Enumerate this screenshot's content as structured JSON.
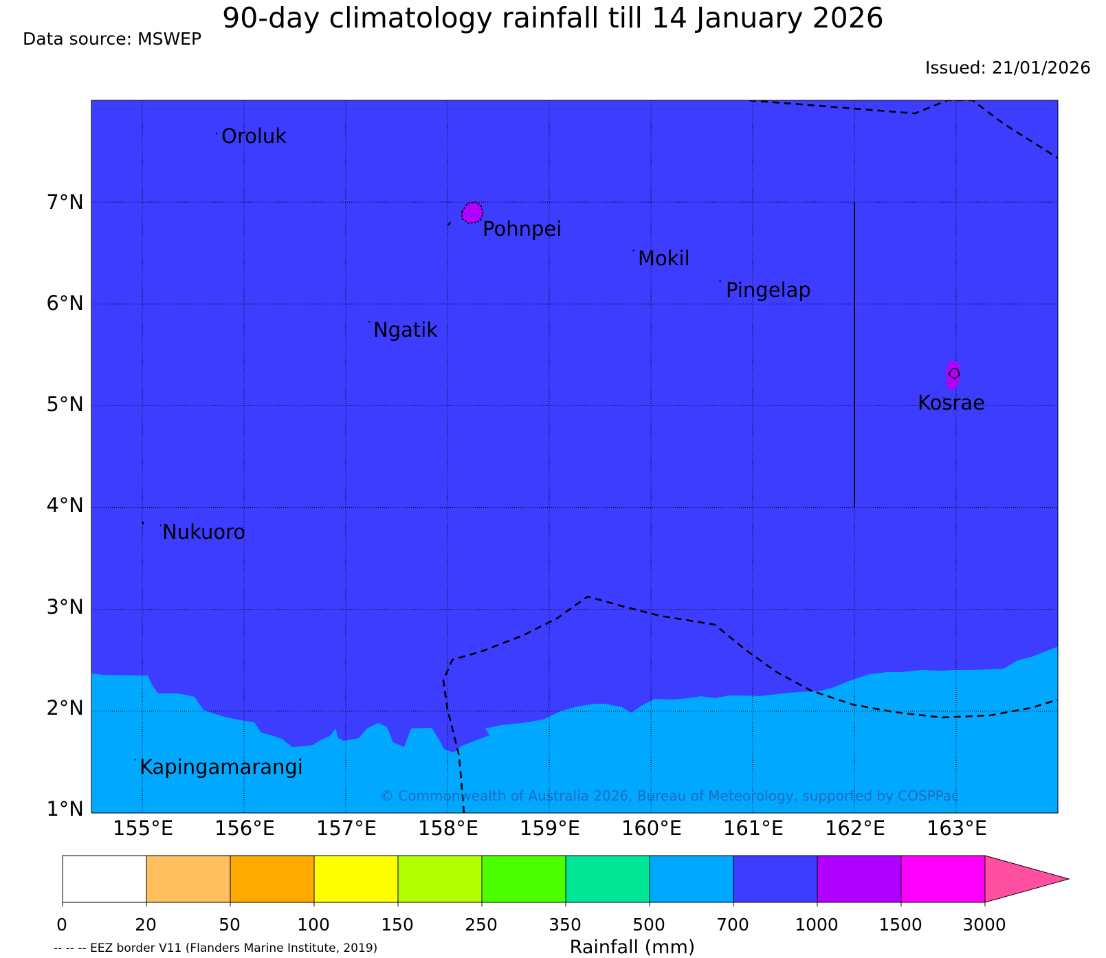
{
  "header": {
    "title": "90-day climatology rainfall till 14 January 2026",
    "source": "Data source: MSWEP",
    "issued": "Issued: 21/01/2026"
  },
  "map": {
    "extent": {
      "lon_min": 154.5,
      "lon_max": 164.0,
      "lat_min": 1.0,
      "lat_max": 8.0
    },
    "lat_labels": [
      "7°N",
      "6°N",
      "5°N",
      "4°N",
      "3°N",
      "2°N",
      "1°N"
    ],
    "lat_values": [
      7,
      6,
      5,
      4,
      3,
      2,
      1
    ],
    "lon_labels": [
      "155°E",
      "156°E",
      "157°E",
      "158°E",
      "159°E",
      "160°E",
      "161°E",
      "162°E",
      "163°E"
    ],
    "lon_values": [
      155,
      156,
      157,
      158,
      159,
      160,
      161,
      162,
      163
    ],
    "background_color": "#3d3dff",
    "south_band_color": "#00a8ff",
    "places": [
      {
        "name": "Oroluk",
        "lon": 155.75,
        "lat": 7.6
      },
      {
        "name": "Pohnpei",
        "lon": 158.35,
        "lat": 6.75
      },
      {
        "name": "Mokil",
        "lon": 159.85,
        "lat": 6.45
      },
      {
        "name": "Pingelap",
        "lon": 160.7,
        "lat": 6.15
      },
      {
        "name": "Ngatik",
        "lon": 157.25,
        "lat": 5.75
      },
      {
        "name": "Kosrae",
        "lon": 162.9,
        "lat": 5.0
      },
      {
        "name": "Nukuoro",
        "lon": 155.2,
        "lat": 3.75
      },
      {
        "name": "Kapingamarangi",
        "lon": 154.95,
        "lat": 1.45
      }
    ],
    "copyright": "© Commonwealth of Australia 2026, Bureau of Meteorology, supported by COSPPac"
  },
  "colorbar": {
    "title": "Rainfall (mm)",
    "ticks": [
      "0",
      "20",
      "50",
      "100",
      "150",
      "250",
      "350",
      "500",
      "700",
      "1000",
      "1500",
      "3000"
    ],
    "colors": [
      "#ffffff",
      "#ffbf5e",
      "#ffaa00",
      "#ffff00",
      "#b2ff00",
      "#4cff00",
      "#00e596",
      "#00a8ff",
      "#3d3dff",
      "#b200ff",
      "#ff00ff",
      "#ff4fa0"
    ],
    "eez_note": "-- -- -- EEZ border V11 (Flanders Marine Institute, 2019)"
  }
}
